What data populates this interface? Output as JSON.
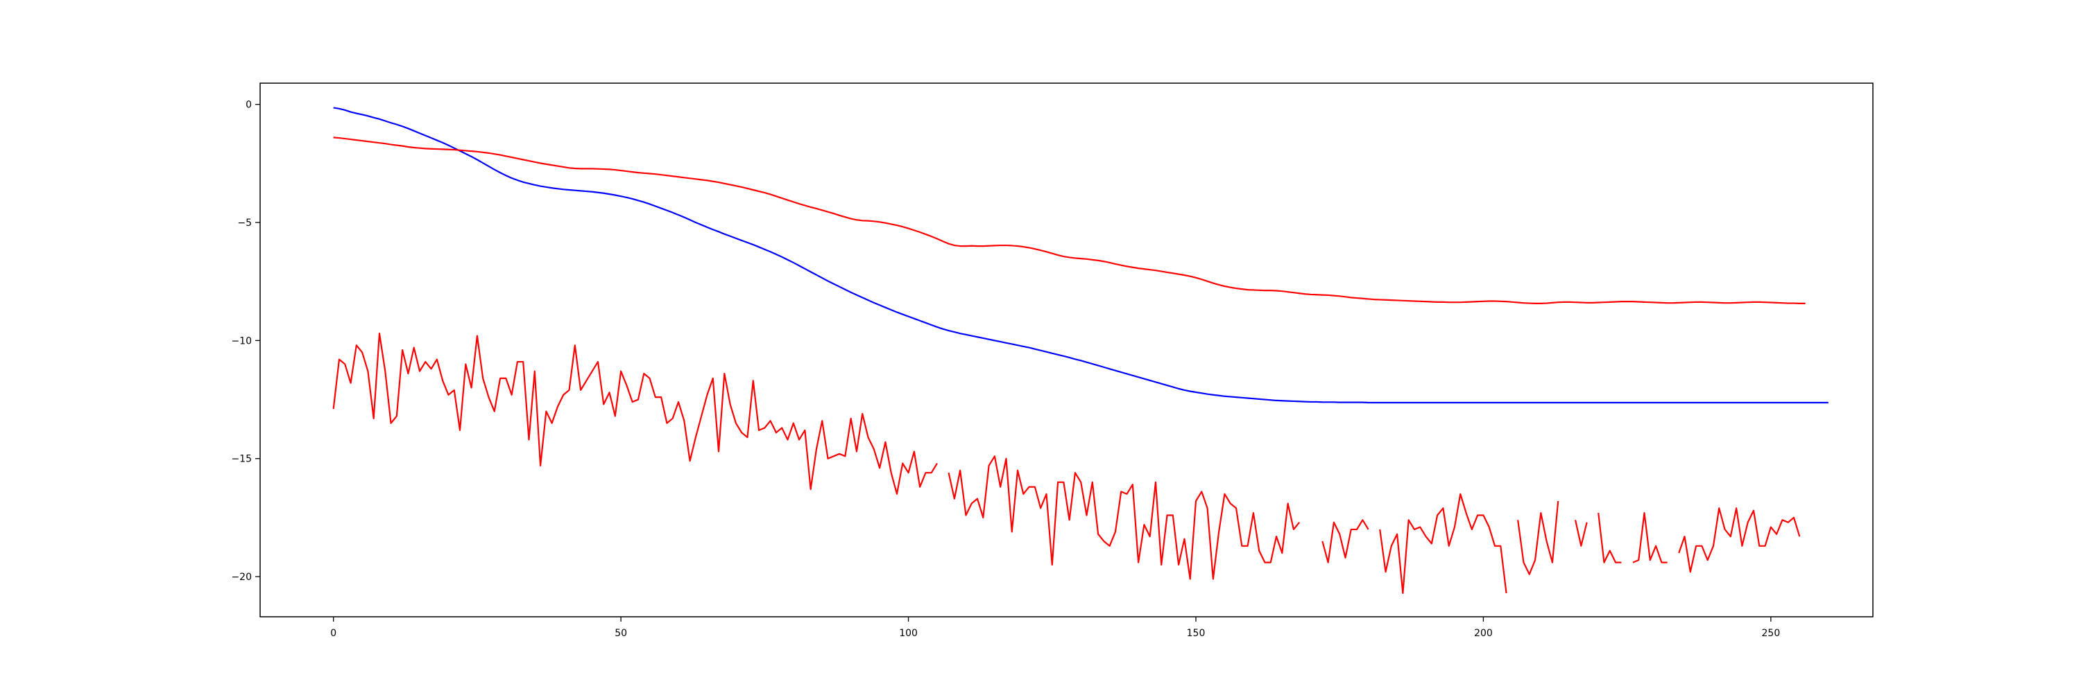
{
  "chart_data": {
    "type": "line",
    "title": "",
    "xlabel": "",
    "ylabel": "",
    "xlim": [
      -12.75,
      267.75
    ],
    "ylim": [
      -21.7,
      0.9
    ],
    "grid": false,
    "legend": "none",
    "x_ticks": [
      0,
      50,
      100,
      150,
      200,
      250
    ],
    "x_tick_labels": [
      "0",
      "50",
      "100",
      "150",
      "200",
      "250"
    ],
    "y_ticks": [
      0,
      -5,
      -10,
      -15,
      -20
    ],
    "y_tick_labels": [
      "0",
      "−5",
      "−10",
      "−15",
      "−20"
    ],
    "series": [
      {
        "color": "#0000ff",
        "x_start": 0,
        "x_step": 1,
        "values": [
          -0.14,
          -0.18,
          -0.24,
          -0.32,
          -0.38,
          -0.43,
          -0.49,
          -0.56,
          -0.62,
          -0.7,
          -0.78,
          -0.85,
          -0.93,
          -1.02,
          -1.12,
          -1.22,
          -1.32,
          -1.42,
          -1.52,
          -1.62,
          -1.73,
          -1.85,
          -1.97,
          -2.09,
          -2.21,
          -2.34,
          -2.48,
          -2.62,
          -2.76,
          -2.89,
          -3.01,
          -3.12,
          -3.21,
          -3.29,
          -3.35,
          -3.41,
          -3.46,
          -3.5,
          -3.54,
          -3.57,
          -3.6,
          -3.62,
          -3.64,
          -3.66,
          -3.68,
          -3.7,
          -3.73,
          -3.76,
          -3.8,
          -3.84,
          -3.89,
          -3.94,
          -4.0,
          -4.07,
          -4.14,
          -4.22,
          -4.31,
          -4.4,
          -4.49,
          -4.58,
          -4.68,
          -4.78,
          -4.89,
          -5.0,
          -5.1,
          -5.2,
          -5.3,
          -5.39,
          -5.49,
          -5.58,
          -5.67,
          -5.76,
          -5.85,
          -5.94,
          -6.04,
          -6.14,
          -6.24,
          -6.35,
          -6.46,
          -6.58,
          -6.7,
          -6.83,
          -6.96,
          -7.09,
          -7.22,
          -7.35,
          -7.48,
          -7.6,
          -7.72,
          -7.84,
          -7.96,
          -8.07,
          -8.18,
          -8.29,
          -8.4,
          -8.5,
          -8.6,
          -8.7,
          -8.8,
          -8.89,
          -8.98,
          -9.07,
          -9.16,
          -9.25,
          -9.34,
          -9.43,
          -9.51,
          -9.58,
          -9.64,
          -9.7,
          -9.75,
          -9.8,
          -9.85,
          -9.9,
          -9.95,
          -10.0,
          -10.05,
          -10.1,
          -10.15,
          -10.2,
          -10.25,
          -10.3,
          -10.36,
          -10.42,
          -10.48,
          -10.54,
          -10.6,
          -10.66,
          -10.72,
          -10.79,
          -10.85,
          -10.92,
          -10.99,
          -11.06,
          -11.13,
          -11.2,
          -11.27,
          -11.34,
          -11.41,
          -11.48,
          -11.55,
          -11.62,
          -11.69,
          -11.76,
          -11.83,
          -11.9,
          -11.97,
          -12.04,
          -12.1,
          -12.15,
          -12.19,
          -12.23,
          -12.27,
          -12.3,
          -12.33,
          -12.36,
          -12.38,
          -12.4,
          -12.42,
          -12.44,
          -12.46,
          -12.48,
          -12.5,
          -12.52,
          -12.54,
          -12.55,
          -12.56,
          -12.57,
          -12.58,
          -12.59,
          -12.6,
          -12.6,
          -12.61,
          -12.61,
          -12.61,
          -12.62,
          -12.62,
          -12.62,
          -12.62,
          -12.62,
          -12.63,
          -12.63,
          -12.63,
          -12.63,
          -12.63,
          -12.63,
          -12.63,
          -12.63,
          -12.63,
          -12.63,
          -12.63,
          -12.63,
          -12.63,
          -12.63,
          -12.63,
          -12.63,
          -12.63,
          -12.63,
          -12.63,
          -12.63,
          -12.63,
          -12.63,
          -12.63,
          -12.63,
          -12.63,
          -12.63,
          -12.63,
          -12.63,
          -12.63,
          -12.63,
          -12.63,
          -12.63,
          -12.63,
          -12.63,
          -12.63,
          -12.63,
          -12.63,
          -12.63,
          -12.63,
          -12.63,
          -12.63,
          -12.63,
          -12.63,
          -12.63,
          -12.63,
          -12.63,
          -12.63,
          -12.63,
          -12.63,
          -12.63,
          -12.63,
          -12.63,
          -12.63,
          -12.63,
          -12.63,
          -12.63,
          -12.63,
          -12.63,
          -12.63,
          -12.63,
          -12.63,
          -12.63,
          -12.63,
          -12.63,
          -12.63,
          -12.63,
          -12.63,
          -12.63,
          -12.63,
          -12.63,
          -12.63,
          -12.63,
          -12.63,
          -12.63,
          -12.63,
          -12.63,
          -12.63,
          -12.63,
          -12.63,
          -12.63,
          -12.63
        ]
      },
      {
        "color": "#ff0000",
        "x_start": 0,
        "x_step": 1,
        "values": [
          -1.4,
          -1.42,
          -1.45,
          -1.48,
          -1.51,
          -1.54,
          -1.57,
          -1.6,
          -1.63,
          -1.66,
          -1.7,
          -1.73,
          -1.76,
          -1.8,
          -1.83,
          -1.85,
          -1.87,
          -1.88,
          -1.89,
          -1.9,
          -1.91,
          -1.92,
          -1.94,
          -1.96,
          -1.98,
          -2.0,
          -2.03,
          -2.06,
          -2.1,
          -2.14,
          -2.19,
          -2.24,
          -2.29,
          -2.34,
          -2.39,
          -2.44,
          -2.49,
          -2.53,
          -2.57,
          -2.61,
          -2.65,
          -2.69,
          -2.71,
          -2.72,
          -2.72,
          -2.72,
          -2.73,
          -2.74,
          -2.75,
          -2.77,
          -2.8,
          -2.83,
          -2.86,
          -2.89,
          -2.91,
          -2.93,
          -2.95,
          -2.98,
          -3.01,
          -3.04,
          -3.07,
          -3.1,
          -3.13,
          -3.16,
          -3.19,
          -3.22,
          -3.26,
          -3.3,
          -3.35,
          -3.4,
          -3.45,
          -3.5,
          -3.56,
          -3.62,
          -3.68,
          -3.74,
          -3.81,
          -3.89,
          -3.97,
          -4.05,
          -4.13,
          -4.21,
          -4.28,
          -4.35,
          -4.41,
          -4.48,
          -4.55,
          -4.62,
          -4.7,
          -4.77,
          -4.84,
          -4.89,
          -4.92,
          -4.93,
          -4.95,
          -4.98,
          -5.02,
          -5.07,
          -5.12,
          -5.18,
          -5.25,
          -5.33,
          -5.41,
          -5.5,
          -5.59,
          -5.69,
          -5.8,
          -5.9,
          -5.97,
          -6.0,
          -6.0,
          -5.99,
          -6.0,
          -6.0,
          -5.99,
          -5.98,
          -5.97,
          -5.97,
          -5.98,
          -6.0,
          -6.03,
          -6.07,
          -6.12,
          -6.18,
          -6.24,
          -6.31,
          -6.38,
          -6.44,
          -6.48,
          -6.51,
          -6.53,
          -6.55,
          -6.58,
          -6.61,
          -6.65,
          -6.7,
          -6.76,
          -6.81,
          -6.86,
          -6.9,
          -6.94,
          -6.97,
          -7.0,
          -7.03,
          -7.07,
          -7.11,
          -7.15,
          -7.19,
          -7.23,
          -7.28,
          -7.34,
          -7.41,
          -7.49,
          -7.57,
          -7.64,
          -7.7,
          -7.75,
          -7.79,
          -7.82,
          -7.85,
          -7.86,
          -7.87,
          -7.88,
          -7.88,
          -7.89,
          -7.91,
          -7.94,
          -7.97,
          -8.0,
          -8.03,
          -8.05,
          -8.06,
          -8.07,
          -8.08,
          -8.1,
          -8.12,
          -8.15,
          -8.18,
          -8.2,
          -8.22,
          -8.24,
          -8.26,
          -8.27,
          -8.28,
          -8.29,
          -8.3,
          -8.31,
          -8.32,
          -8.33,
          -8.34,
          -8.35,
          -8.36,
          -8.37,
          -8.37,
          -8.38,
          -8.38,
          -8.38,
          -8.37,
          -8.36,
          -8.35,
          -8.34,
          -8.33,
          -8.33,
          -8.34,
          -8.35,
          -8.37,
          -8.39,
          -8.41,
          -8.42,
          -8.43,
          -8.43,
          -8.42,
          -8.4,
          -8.38,
          -8.37,
          -8.37,
          -8.38,
          -8.39,
          -8.4,
          -8.4,
          -8.39,
          -8.38,
          -8.37,
          -8.36,
          -8.35,
          -8.35,
          -8.35,
          -8.36,
          -8.37,
          -8.38,
          -8.39,
          -8.4,
          -8.41,
          -8.41,
          -8.4,
          -8.39,
          -8.38,
          -8.37,
          -8.37,
          -8.38,
          -8.39,
          -8.4,
          -8.41,
          -8.41,
          -8.4,
          -8.39,
          -8.38,
          -8.37,
          -8.37,
          -8.38,
          -8.39,
          -8.4,
          -8.41,
          -8.42,
          -8.42,
          -8.43,
          -8.43
        ]
      },
      {
        "color": "#ff0000",
        "x_start": 0,
        "x_step": 1,
        "values": [
          -12.9,
          -10.8,
          -11.0,
          -11.8,
          -10.2,
          -10.5,
          -11.3,
          -13.3,
          -9.7,
          -11.3,
          -13.5,
          -13.2,
          -10.4,
          -11.4,
          -10.3,
          -11.3,
          -10.9,
          -11.2,
          -10.8,
          -11.7,
          -12.3,
          -12.1,
          -13.8,
          -11.0,
          -12.0,
          -9.8,
          -11.6,
          -12.4,
          -13.0,
          -11.6,
          -11.6,
          -12.3,
          -10.9,
          -10.9,
          -14.2,
          -11.3,
          -15.3,
          -13.0,
          -13.5,
          -12.8,
          -12.3,
          -12.1,
          -10.2,
          -12.1,
          -11.7,
          -11.3,
          -10.9,
          -12.7,
          -12.2,
          -13.2,
          -11.3,
          -11.9,
          -12.6,
          -12.5,
          -11.4,
          -11.6,
          -12.4,
          -12.4,
          -13.5,
          -13.3,
          -12.6,
          -13.4,
          -15.1,
          -14.1,
          -13.2,
          -12.3,
          -11.6,
          -14.7,
          -11.4,
          -12.7,
          -13.5,
          -13.9,
          -14.1,
          -11.7,
          -13.8,
          -13.7,
          -13.4,
          -13.9,
          -13.7,
          -14.2,
          -13.5,
          -14.2,
          -13.8,
          -16.3,
          -14.6,
          -13.4,
          -15.0,
          -14.9,
          -14.8,
          -14.9,
          -13.3,
          -14.7,
          -13.1,
          -14.1,
          -14.6,
          -15.4,
          -14.3,
          -15.6,
          -16.5,
          -15.2,
          -15.6,
          -14.7,
          -16.2,
          -15.6,
          -15.6,
          -15.2,
          null,
          -15.6,
          -16.7,
          -15.5,
          -17.4,
          -16.9,
          -16.7,
          -17.5,
          -15.3,
          -14.9,
          -16.2,
          -15.0,
          -18.1,
          -15.5,
          -16.5,
          -16.2,
          -16.2,
          -17.1,
          -16.5,
          -19.5,
          -16.0,
          -16.0,
          -17.6,
          -15.6,
          -16.0,
          -17.4,
          -16.0,
          -18.2,
          -18.5,
          -18.7,
          -18.1,
          -16.4,
          -16.5,
          -16.1,
          -19.4,
          -17.8,
          -18.3,
          -16.0,
          -19.5,
          -17.4,
          -17.4,
          -19.5,
          -18.4,
          -20.1,
          -16.8,
          -16.4,
          -17.1,
          -20.1,
          -18.1,
          -16.5,
          -16.9,
          -17.1,
          -18.7,
          -18.7,
          -17.3,
          -18.9,
          -19.4,
          -19.4,
          -18.3,
          -19.0,
          -16.9,
          -18.0,
          -17.7,
          null,
          null,
          null,
          -18.5,
          -19.4,
          -17.7,
          -18.2,
          -19.2,
          -18.0,
          -18.0,
          -17.6,
          -18.0,
          null,
          -18.0,
          -19.8,
          -18.7,
          -18.2,
          -20.7,
          -17.6,
          -18.0,
          -17.9,
          -18.3,
          -18.6,
          -17.4,
          -17.1,
          -18.7,
          -17.9,
          -16.5,
          -17.3,
          -18.0,
          -17.4,
          -17.4,
          -17.9,
          -18.7,
          -18.7,
          -20.7,
          null,
          -17.6,
          -19.4,
          -19.9,
          -19.3,
          -17.3,
          -18.5,
          -19.4,
          -16.8,
          null,
          null,
          -17.6,
          -18.7,
          -17.7,
          null,
          -17.3,
          -19.4,
          -18.9,
          -19.4,
          -19.4,
          null,
          -19.4,
          -19.3,
          -17.3,
          -19.3,
          -18.7,
          -19.4,
          -19.4,
          null,
          -19.0,
          -18.3,
          -19.8,
          -18.7,
          -18.7,
          -19.3,
          -18.7,
          -17.1,
          -18.0,
          -18.3,
          -17.1,
          -18.7,
          -17.7,
          -17.2,
          -18.7,
          -18.7,
          -17.9,
          -18.2,
          -17.6,
          -17.7,
          -17.5,
          -18.3
        ]
      }
    ]
  }
}
